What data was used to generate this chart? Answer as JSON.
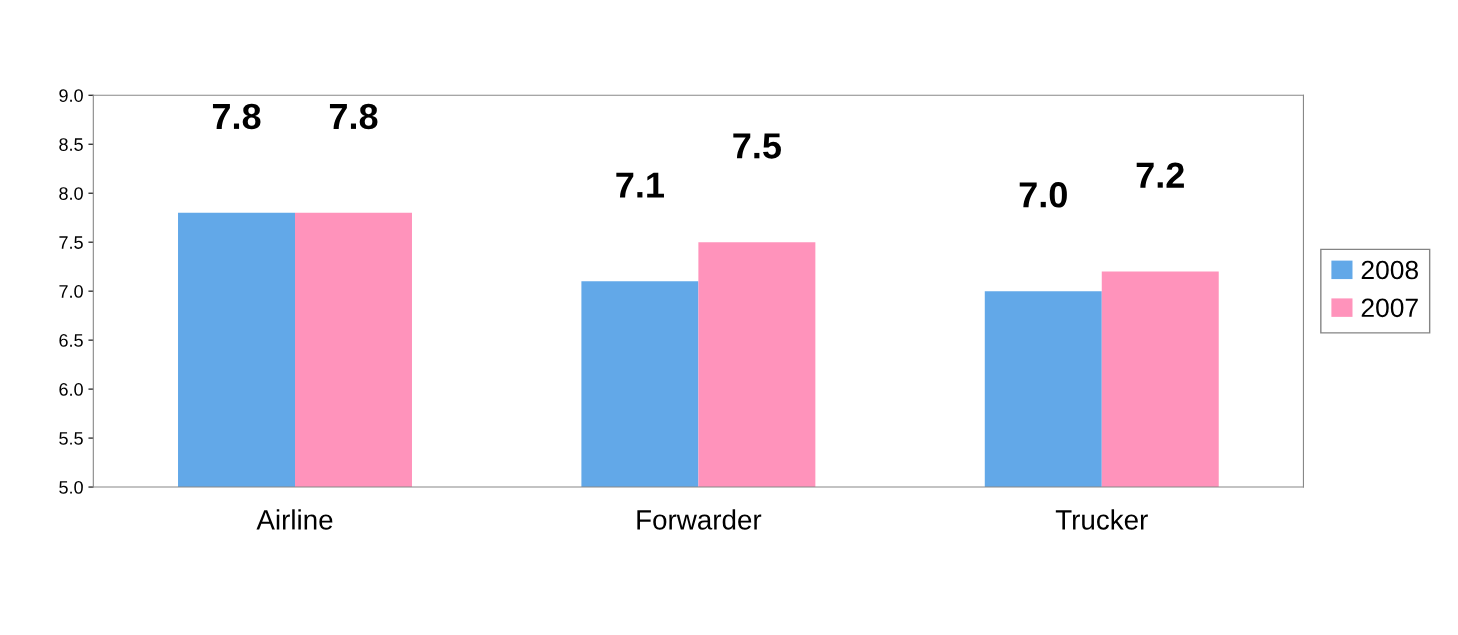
{
  "chart_data": {
    "type": "bar",
    "categories": [
      "Airline",
      "Forwarder",
      "Trucker"
    ],
    "series": [
      {
        "name": "2008",
        "color": "#62a8e8",
        "values": [
          7.8,
          7.1,
          7.0
        ],
        "value_labels": [
          "7.8",
          "7.1",
          "7.0"
        ]
      },
      {
        "name": "2007",
        "color": "#ff93bb",
        "values": [
          7.8,
          7.5,
          7.2
        ],
        "value_labels": [
          "7.8",
          "7.5",
          "7.2"
        ]
      }
    ],
    "ylim": [
      5.0,
      9.0
    ],
    "yticks": [
      {
        "value": 5.0,
        "label": "5.0"
      },
      {
        "value": 5.5,
        "label": "5.5"
      },
      {
        "value": 6.0,
        "label": "6.0"
      },
      {
        "value": 6.5,
        "label": "6.5"
      },
      {
        "value": 7.0,
        "label": "7.0"
      },
      {
        "value": 7.5,
        "label": "7.5"
      },
      {
        "value": 8.0,
        "label": "8.0"
      },
      {
        "value": 8.5,
        "label": "8.5"
      },
      {
        "value": 9.0,
        "label": "9.0"
      }
    ],
    "legend": "right",
    "grid": false
  }
}
